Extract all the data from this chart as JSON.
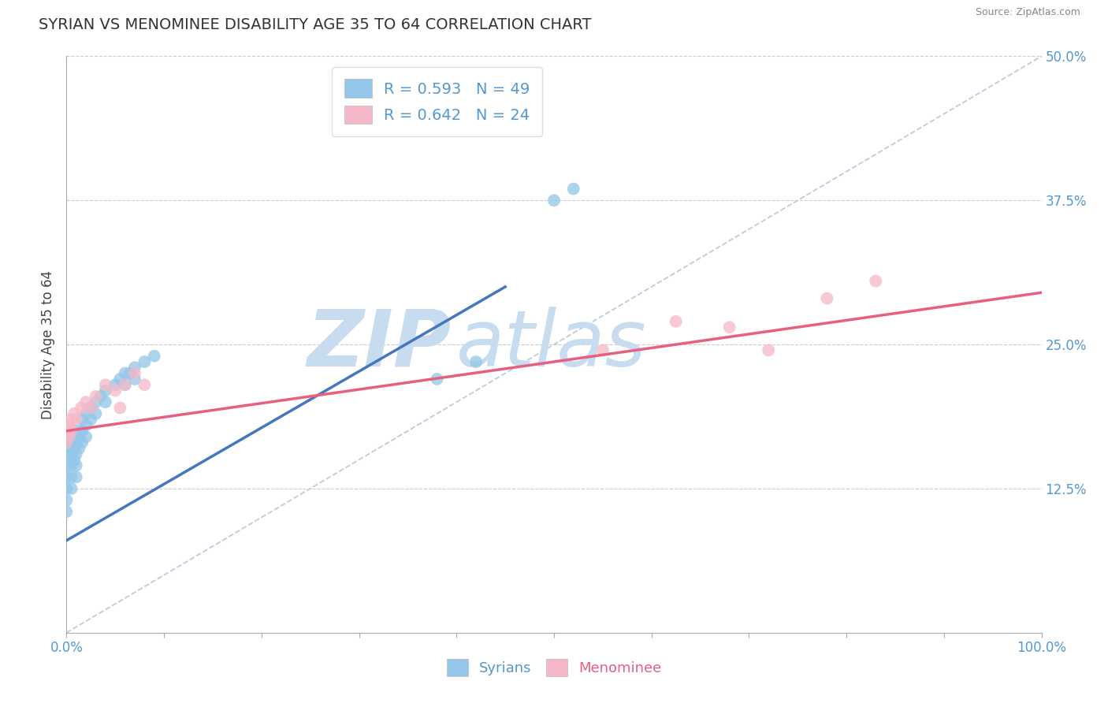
{
  "title": "SYRIAN VS MENOMINEE DISABILITY AGE 35 TO 64 CORRELATION CHART",
  "source": "Source: ZipAtlas.com",
  "ylabel": "Disability Age 35 to 64",
  "xlim": [
    0.0,
    1.0
  ],
  "ylim": [
    0.0,
    0.5
  ],
  "yticks": [
    0.125,
    0.25,
    0.375,
    0.5
  ],
  "ytick_labels": [
    "12.5%",
    "25.0%",
    "37.5%",
    "50.0%"
  ],
  "xticks": [
    0.0,
    0.1,
    0.2,
    0.3,
    0.4,
    0.5,
    0.6,
    0.7,
    0.8,
    0.9,
    1.0
  ],
  "xtick_labels": [
    "0.0%",
    "",
    "",
    "",
    "",
    "",
    "",
    "",
    "",
    "",
    "100.0%"
  ],
  "syrian_R": 0.593,
  "syrian_N": 49,
  "menominee_R": 0.642,
  "menominee_N": 24,
  "blue_color": "#93C6E8",
  "pink_color": "#F5B8C8",
  "blue_line_color": "#4477BB",
  "pink_line_color": "#E86080",
  "diag_line_color": "#BBCCDD",
  "grid_color": "#CCCCCC",
  "title_color": "#333333",
  "axis_label_color": "#5599CC",
  "watermark_zip_color": "#C8DCF0",
  "watermark_atlas_color": "#C8DCF0",
  "syrians_x": [
    0.0,
    0.0,
    0.0,
    0.0,
    0.0,
    0.0,
    0.0,
    0.005,
    0.005,
    0.005,
    0.005,
    0.005,
    0.005,
    0.008,
    0.008,
    0.008,
    0.01,
    0.01,
    0.01,
    0.01,
    0.01,
    0.013,
    0.013,
    0.016,
    0.016,
    0.016,
    0.02,
    0.02,
    0.02,
    0.025,
    0.025,
    0.03,
    0.03,
    0.035,
    0.04,
    0.04,
    0.05,
    0.055,
    0.06,
    0.06,
    0.065,
    0.07,
    0.07,
    0.08,
    0.09,
    0.38,
    0.42,
    0.5,
    0.52
  ],
  "syrians_y": [
    0.16,
    0.155,
    0.145,
    0.135,
    0.125,
    0.115,
    0.105,
    0.175,
    0.165,
    0.155,
    0.145,
    0.135,
    0.125,
    0.17,
    0.16,
    0.15,
    0.175,
    0.165,
    0.155,
    0.145,
    0.135,
    0.17,
    0.16,
    0.185,
    0.175,
    0.165,
    0.19,
    0.18,
    0.17,
    0.195,
    0.185,
    0.2,
    0.19,
    0.205,
    0.21,
    0.2,
    0.215,
    0.22,
    0.225,
    0.215,
    0.225,
    0.23,
    0.22,
    0.235,
    0.24,
    0.22,
    0.235,
    0.375,
    0.385
  ],
  "menominee_x": [
    0.0,
    0.0,
    0.003,
    0.003,
    0.005,
    0.005,
    0.008,
    0.01,
    0.015,
    0.02,
    0.025,
    0.03,
    0.04,
    0.05,
    0.055,
    0.06,
    0.07,
    0.08,
    0.55,
    0.625,
    0.68,
    0.72,
    0.78,
    0.83
  ],
  "menominee_y": [
    0.175,
    0.165,
    0.18,
    0.17,
    0.185,
    0.175,
    0.19,
    0.185,
    0.195,
    0.2,
    0.195,
    0.205,
    0.215,
    0.21,
    0.195,
    0.215,
    0.225,
    0.215,
    0.245,
    0.27,
    0.265,
    0.245,
    0.29,
    0.305
  ],
  "syrian_line_x": [
    0.0,
    0.45
  ],
  "syrian_line_y": [
    0.08,
    0.3
  ],
  "menominee_line_x": [
    0.0,
    1.0
  ],
  "menominee_line_y": [
    0.175,
    0.295
  ],
  "diag_line_x": [
    0.0,
    1.0
  ],
  "diag_line_y": [
    0.0,
    0.5
  ]
}
